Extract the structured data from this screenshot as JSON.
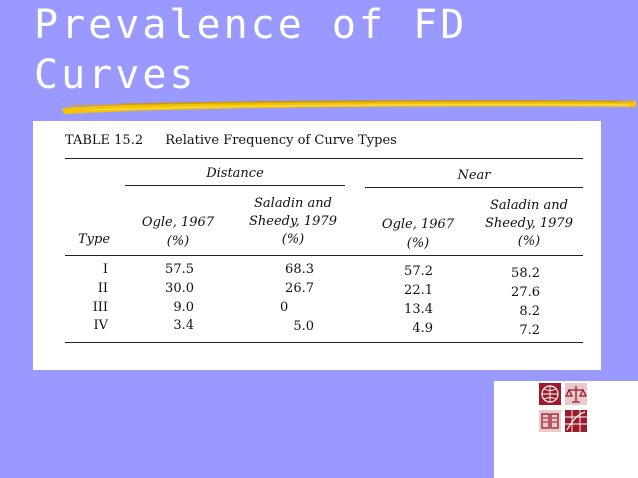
{
  "slide": {
    "title_line1": "Prevalence of FD",
    "title_line2": "Curves"
  },
  "table": {
    "number": "TABLE 15.2",
    "caption": "Relative Frequency of Curve Types",
    "group_distance": "Distance",
    "group_near": "Near",
    "columns": {
      "type": "Type",
      "ogle_dist": [
        "Ogle, 1967",
        "(%)"
      ],
      "sal_dist": [
        "Saladin and",
        "Sheedy, 1979",
        "(%)"
      ],
      "ogle_near": [
        "Ogle, 1967",
        "(%)"
      ],
      "sal_near": [
        "Saladin and",
        "Sheedy, 1979",
        "(%)"
      ]
    },
    "rows": [
      {
        "type": "I",
        "ogle_dist": "57.5",
        "sal_dist": "68.3",
        "ogle_near": "57.2",
        "sal_near": "58.2"
      },
      {
        "type": "II",
        "ogle_dist": "30.0",
        "sal_dist": "26.7",
        "ogle_near": "22.1",
        "sal_near": "27.6"
      },
      {
        "type": "III",
        "ogle_dist": "9.0",
        "sal_dist": "0",
        "ogle_near": "13.4",
        "sal_near": "8.2"
      },
      {
        "type": "IV",
        "ogle_dist": "3.4",
        "sal_dist": "5.0",
        "ogle_near": "4.9",
        "sal_near": "7.2"
      }
    ]
  },
  "colors": {
    "background": "#9999ff",
    "title": "#ffffff",
    "underline": "#f5c400",
    "logo": "#9b1b2a"
  },
  "icons": [
    "globe-icon",
    "books-icon",
    "grid-globe-icon",
    "scales-icon"
  ]
}
